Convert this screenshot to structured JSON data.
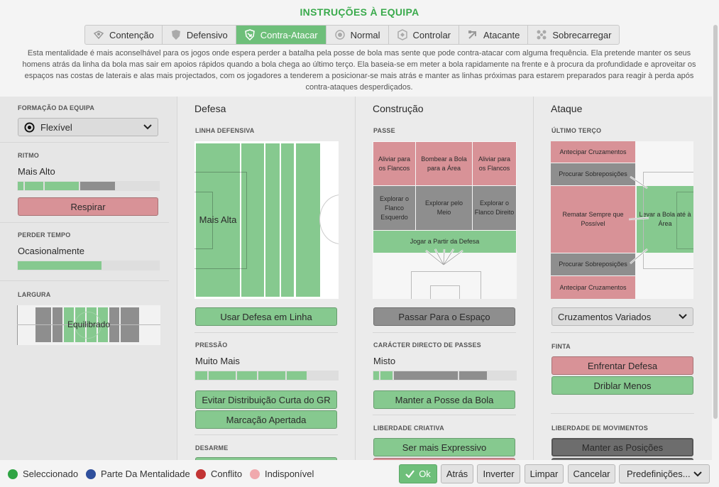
{
  "title": "INSTRUÇÕES À EQUIPA",
  "colors": {
    "selected": "#86c98f",
    "conflict": "#d89297",
    "unavailable": "#8e8e8e",
    "accent": "#3aaa4c"
  },
  "tabs": [
    {
      "label": "Contenção",
      "icon": "contain-icon"
    },
    {
      "label": "Defensivo",
      "icon": "shield-icon"
    },
    {
      "label": "Contra-Atacar",
      "icon": "counter-icon",
      "active": true
    },
    {
      "label": "Normal",
      "icon": "balance-icon"
    },
    {
      "label": "Controlar",
      "icon": "control-icon"
    },
    {
      "label": "Atacante",
      "icon": "attack-icon"
    },
    {
      "label": "Sobrecarregar",
      "icon": "overload-icon"
    }
  ],
  "description": "Esta mentalidade é mais aconselhável para os jogos onde espera perder a batalha pela posse de bola mas sente que pode contra-atacar com alguma frequência. Ela pretende manter os seus homens atrás da linha da bola mas sair em apoios rápidos quando a bola chega ao último terço. Ela baseia-se em meter a bola rapidamente na frente e à procura da profundidade e aproveitar os espaços nas costas de laterais e alas mais projectados, com os jogadores a tenderem a posicionar-se mais atrás e manter as linhas próximas para estarem preparados para reagir à perda após contra-ataques desperdiçados.",
  "left": {
    "formation_label": "FORMAÇÃO DA EQUIPA",
    "formation_value": "Flexível",
    "tempo_label": "RITMO",
    "tempo_value": "Mais Alto",
    "tempo_level": 4,
    "tempo_button": "Respirar",
    "timewasting_label": "PERDER TEMPO",
    "timewasting_value": "Ocasionalmente",
    "timewasting_fraction": 0.6,
    "width_label": "LARGURA",
    "width_value": "Equilibrado"
  },
  "defense": {
    "header": "Defesa",
    "line_label": "LINHA DEFENSIVA",
    "line_value": "Mais Alta",
    "line_button": "Usar Defesa em Linha",
    "press_label": "PRESSÃO",
    "press_value": "Muito Mais",
    "press_level": 5,
    "press_buttons": [
      "Evitar Distribuição Curta do GR",
      "Marcação Apertada"
    ],
    "tackle_label": "DESARME"
  },
  "buildup": {
    "header": "Construção",
    "passing_label": "PASSE",
    "cells": {
      "wide_left": "Aliviar para os Flancos",
      "long": "Bombear a Bola para a Área",
      "wide_right": "Aliviar para os Flancos",
      "flank_left": "Explorar o Flanco Esquerdo",
      "middle": "Explorar pelo Meio",
      "flank_right": "Explorar o Flanco Direito",
      "play_out": "Jogar a Partir da Defesa"
    },
    "space_button": "Passar Para o Espaço",
    "directness_label": "CARÁCTER DIRECTO DE PASSES",
    "directness_value": "Misto",
    "possession_button": "Manter a Posse da Bola",
    "creative_label": "LIBERDADE CRIATIVA",
    "creative_button": "Ser mais Expressivo"
  },
  "attack": {
    "header": "Ataque",
    "final_third_label": "ÚLTIMO TERÇO",
    "cells": {
      "early_cross_top": "Antecipar Cruzamentos",
      "overlap_top": "Procurar Sobreposições",
      "shoot": "Rematar Sempre que Possível",
      "work_ball": "Levar a Bola até à Área",
      "overlap_bottom": "Procurar Sobreposições",
      "early_cross_bottom": "Antecipar Cruzamentos"
    },
    "cross_dropdown": "Cruzamentos Variados",
    "dribble_label": "FINTA",
    "dribble_buttons": [
      "Enfrentar Defesa",
      "Driblar Menos"
    ],
    "movement_label": "LIBERDADE DE MOVIMENTOS",
    "movement_button": "Manter as Posições"
  },
  "legend": [
    {
      "label": "Seleccionado",
      "color": "#2fa444"
    },
    {
      "label": "Parte Da Mentalidade",
      "color": "#2e4f9c"
    },
    {
      "label": "Conflito",
      "color": "#c23434"
    },
    {
      "label": "Indisponível",
      "color": "#f0a9ad"
    }
  ],
  "footer_buttons": {
    "ok": "Ok",
    "back": "Atrás",
    "invert": "Inverter",
    "clear": "Limpar",
    "cancel": "Cancelar",
    "presets": "Predefinições..."
  }
}
